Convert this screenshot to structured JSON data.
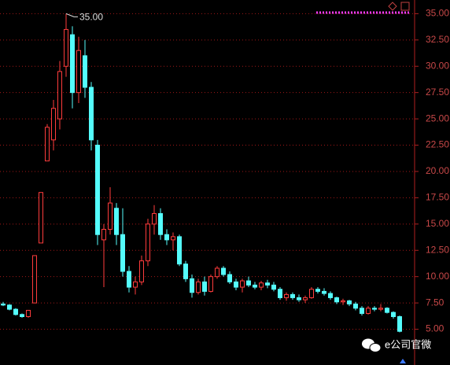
{
  "chart_data": {
    "type": "candlestick",
    "annotation": "35.00",
    "watermark": "e公司官微",
    "up_color": "#ff3c3c",
    "down_color": "#54fcfc",
    "ylim": [
      1.6,
      36.3
    ],
    "yticks": [
      {
        "value": 5,
        "label": "5.00"
      },
      {
        "value": 7.5,
        "label": "7.50"
      },
      {
        "value": 10,
        "label": "10.00"
      },
      {
        "value": 12.5,
        "label": "12.50"
      },
      {
        "value": 15,
        "label": "15.00"
      },
      {
        "value": 17.5,
        "label": "17.50"
      },
      {
        "value": 20,
        "label": "20.00"
      },
      {
        "value": 22.5,
        "label": "22.50"
      },
      {
        "value": 25,
        "label": "25.00"
      },
      {
        "value": 27.5,
        "label": "27.50"
      },
      {
        "value": 30,
        "label": "30.00"
      },
      {
        "value": 32.5,
        "label": "32.50"
      },
      {
        "value": 35,
        "label": "35.00"
      }
    ],
    "grid": true,
    "open": [
      7.4,
      7.3,
      6.9,
      6.4,
      6.2,
      7.5,
      13.2,
      21.0,
      23.0,
      25.0,
      30.0,
      33.0,
      27.5,
      31.0,
      28.0,
      22.5,
      13.5,
      14.5,
      16.5,
      14.0,
      10.5,
      9.0,
      9.5,
      11.5,
      15.0,
      16.0,
      14.0,
      13.5,
      13.8,
      11.2,
      9.8,
      8.5,
      9.5,
      8.6,
      10.0,
      10.8,
      10.2,
      9.5,
      9.0,
      9.6,
      9.2,
      9.0,
      9.4,
      9.2,
      8.8,
      8.0,
      8.3,
      8.0,
      7.8,
      8.0,
      8.8,
      8.6,
      8.4,
      8.0,
      7.6,
      7.7,
      7.4,
      7.0,
      6.5,
      7.0,
      6.9,
      7.0,
      6.6,
      6.2
    ],
    "high": [
      7.6,
      7.4,
      7.0,
      6.5,
      6.8,
      12.0,
      18.0,
      24.5,
      26.8,
      30.5,
      35.0,
      33.8,
      32.8,
      32.5,
      28.5,
      23.0,
      15.0,
      18.5,
      17.0,
      16.5,
      11.0,
      10.0,
      12.0,
      15.5,
      16.8,
      16.5,
      14.5,
      14.2,
      14.0,
      11.5,
      10.2,
      9.8,
      10.0,
      10.2,
      11.0,
      11.0,
      10.5,
      9.8,
      9.8,
      10.0,
      9.5,
      9.6,
      9.7,
      9.5,
      9.0,
      8.5,
      8.5,
      8.3,
      8.2,
      9.0,
      9.0,
      8.9,
      8.6,
      8.1,
      7.9,
      7.8,
      7.6,
      7.2,
      7.2,
      7.2,
      7.4,
      7.1,
      6.7,
      6.3
    ],
    "low": [
      7.2,
      6.8,
      6.3,
      6.1,
      6.1,
      7.5,
      13.2,
      21.0,
      22.0,
      24.0,
      29.0,
      26.0,
      26.5,
      27.0,
      22.0,
      13.0,
      9.0,
      14.0,
      13.0,
      10.0,
      8.5,
      8.3,
      9.2,
      11.0,
      14.0,
      13.5,
      13.0,
      12.5,
      11.0,
      9.5,
      8.0,
      8.3,
      8.2,
      8.5,
      9.8,
      10.0,
      9.3,
      8.7,
      8.5,
      9.0,
      8.8,
      8.7,
      8.9,
      8.6,
      7.8,
      7.7,
      7.8,
      7.6,
      7.5,
      7.9,
      8.4,
      8.2,
      7.8,
      7.4,
      7.3,
      7.2,
      6.8,
      6.3,
      6.4,
      6.7,
      6.7,
      6.5,
      6.0,
      4.7
    ],
    "close": [
      7.3,
      6.9,
      6.4,
      6.2,
      6.8,
      12.0,
      18.0,
      24.2,
      26.0,
      29.5,
      33.5,
      27.5,
      31.5,
      28.0,
      23.0,
      14.0,
      14.5,
      17.0,
      14.0,
      10.5,
      9.0,
      9.5,
      11.5,
      15.0,
      16.0,
      14.0,
      13.5,
      13.8,
      11.2,
      9.8,
      8.5,
      9.5,
      8.6,
      10.0,
      10.8,
      10.2,
      9.5,
      9.0,
      9.6,
      9.2,
      9.0,
      9.4,
      9.2,
      8.8,
      8.0,
      8.3,
      8.0,
      7.8,
      8.0,
      8.8,
      8.6,
      8.4,
      8.0,
      7.6,
      7.7,
      7.4,
      7.0,
      6.5,
      7.0,
      6.9,
      7.0,
      6.6,
      6.2,
      4.8
    ]
  }
}
